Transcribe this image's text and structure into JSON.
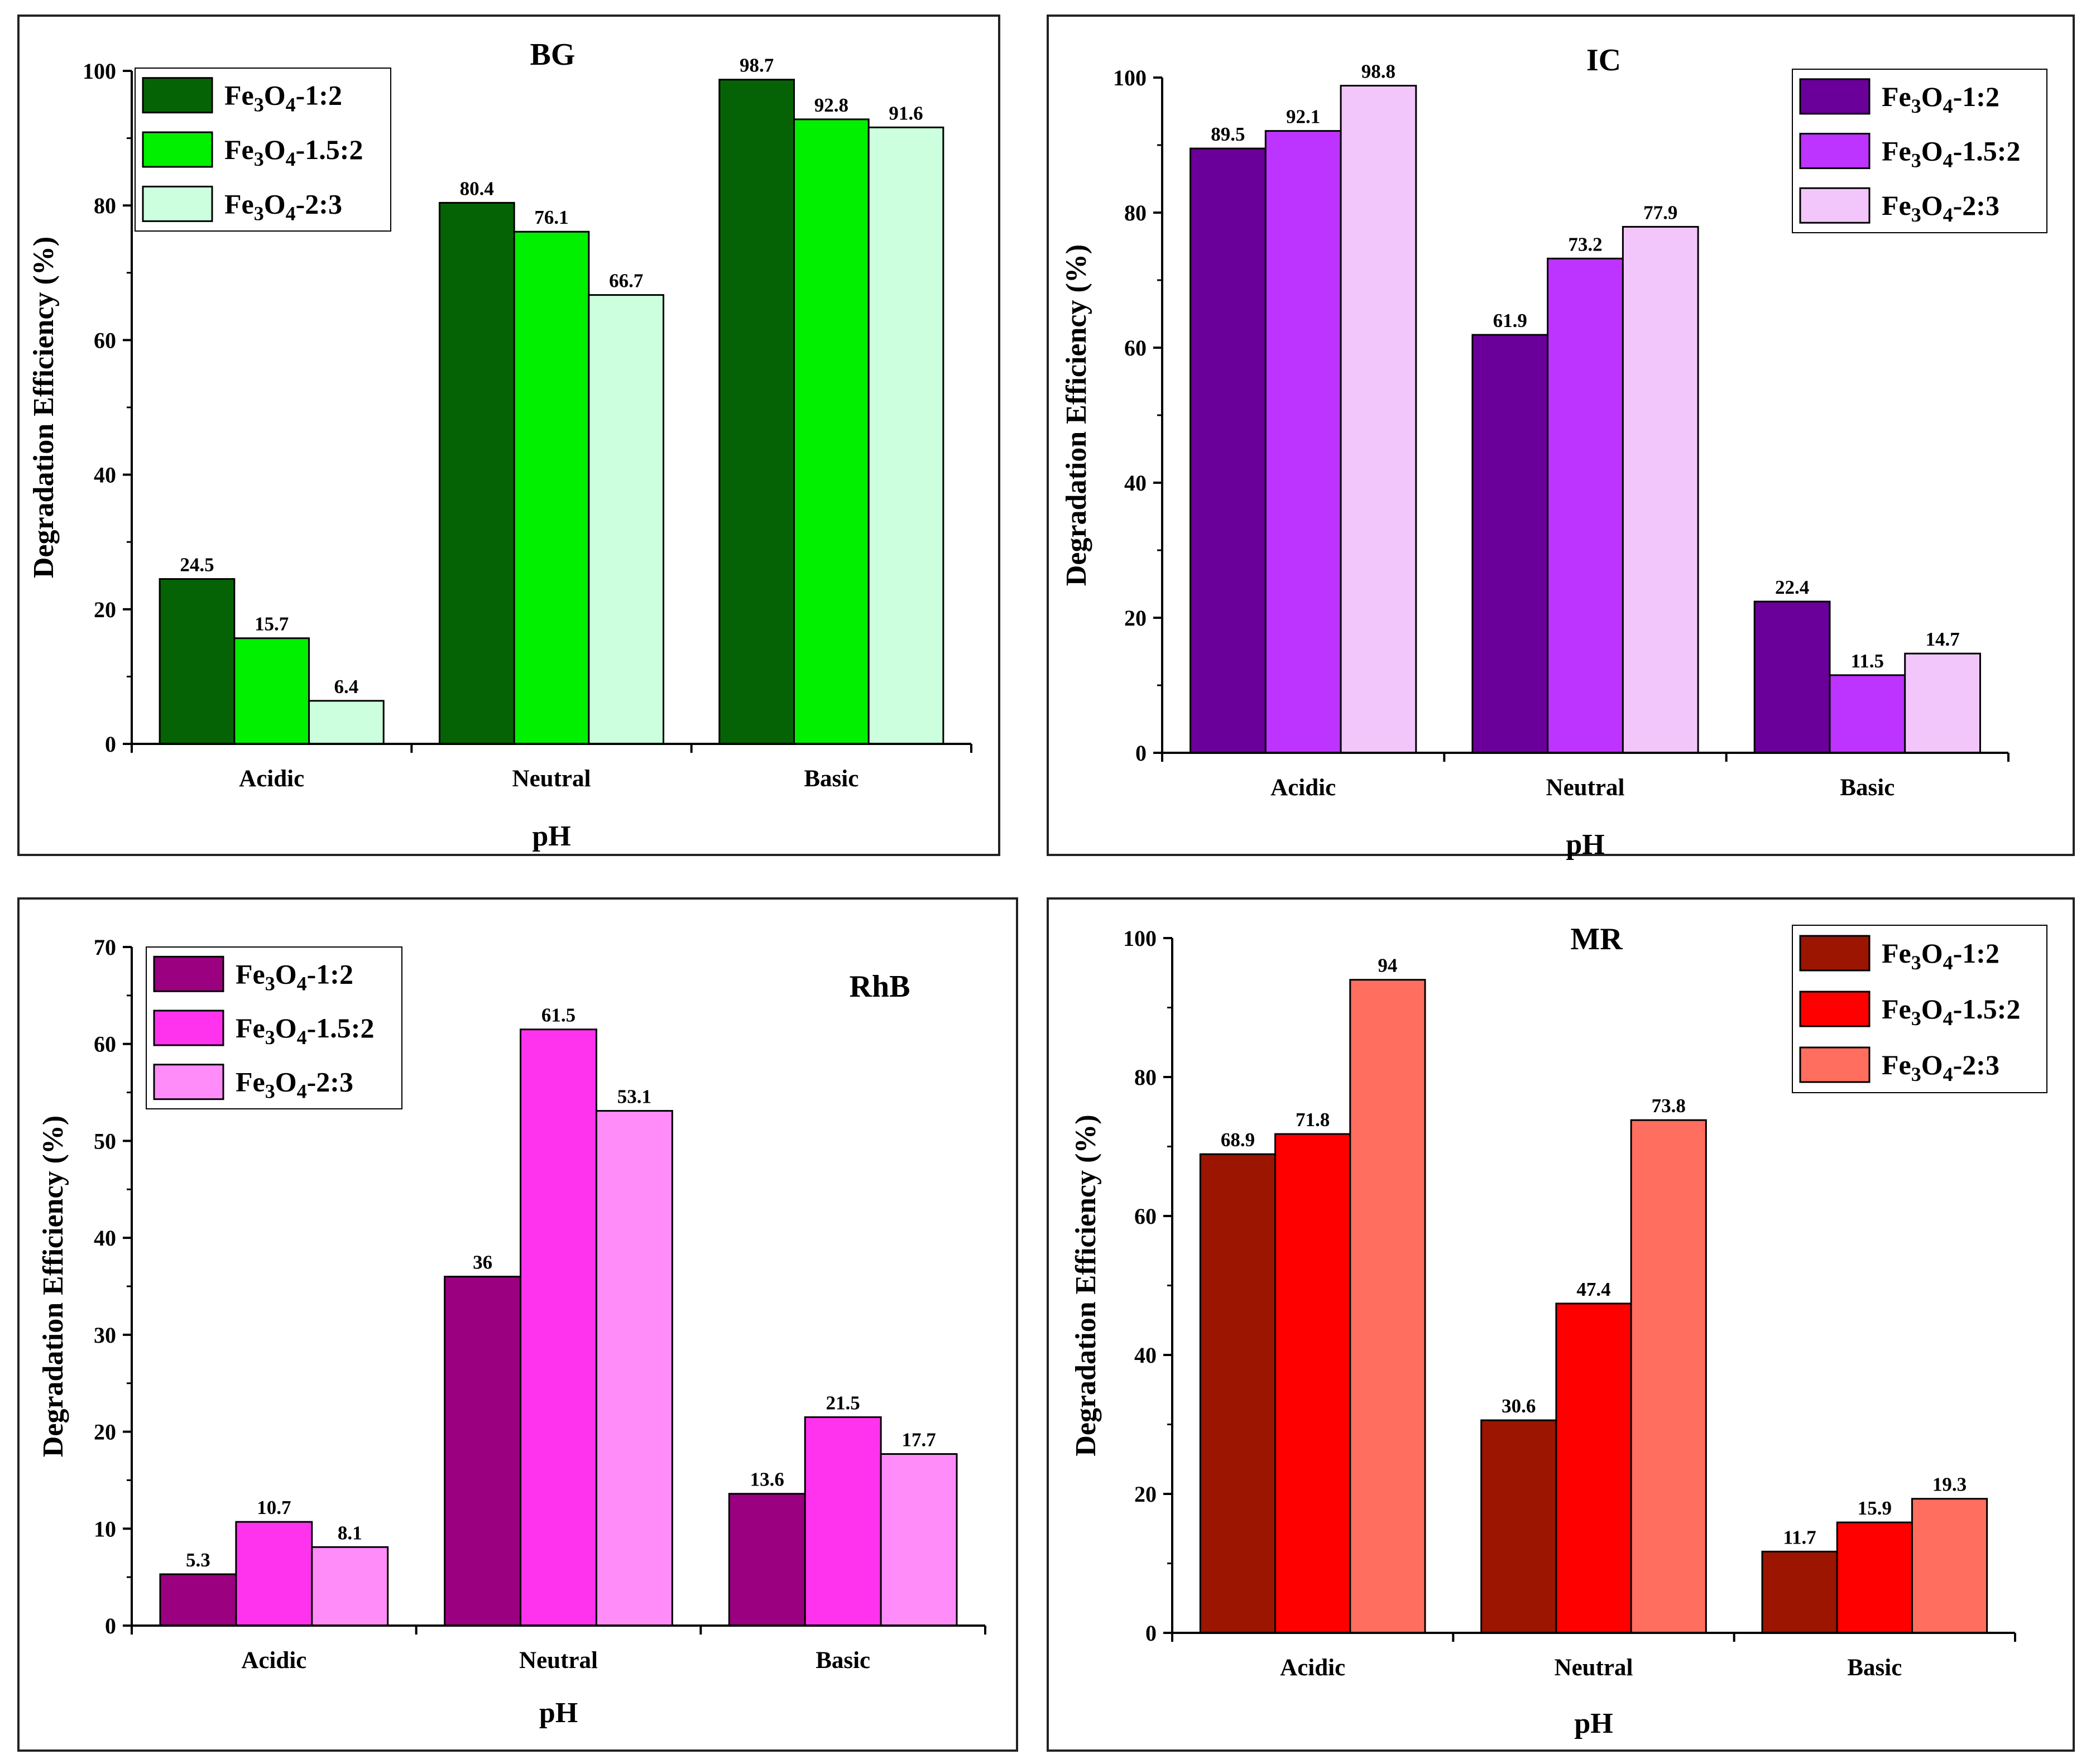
{
  "chart_data": [
    {
      "type": "bar",
      "title": "BG",
      "xlabel": "pH",
      "ylabel": "Degradation Efficiency (%)",
      "ylim": [
        0,
        100
      ],
      "yticks": [
        0,
        20,
        40,
        60,
        80,
        100
      ],
      "categories": [
        "Acidic",
        "Neutral",
        "Basic"
      ],
      "legend_position": "top-left",
      "series": [
        {
          "name": "Fe3O4-1:2",
          "label": {
            "a": "Fe",
            "b": "3",
            "c": "O",
            "d": "4",
            "e": "-1:2"
          },
          "color": "#056305",
          "values": [
            24.5,
            80.4,
            98.7
          ],
          "value_labels": [
            "24.5",
            "80.4",
            "98.7"
          ]
        },
        {
          "name": "Fe3O4-1.5:2",
          "label": {
            "a": "Fe",
            "b": "3",
            "c": "O",
            "d": "4",
            "e": "-1.5:2"
          },
          "color": "#00f000",
          "values": [
            15.7,
            76.1,
            92.8
          ],
          "value_labels": [
            "15.7",
            "76.1",
            "92.8"
          ]
        },
        {
          "name": "Fe3O4-2:3",
          "label": {
            "a": "Fe",
            "b": "3",
            "c": "O",
            "d": "4",
            "e": "-2:3"
          },
          "color": "#ccffdd",
          "values": [
            6.4,
            66.7,
            91.6
          ],
          "value_labels": [
            "6.4",
            "66.7",
            "91.6"
          ]
        }
      ]
    },
    {
      "type": "bar",
      "title": "IC",
      "xlabel": "pH",
      "ylabel": "Degradation Efficiency (%)",
      "ylim": [
        0,
        100
      ],
      "yticks": [
        0,
        20,
        40,
        60,
        80,
        100
      ],
      "categories": [
        "Acidic",
        "Neutral",
        "Basic"
      ],
      "legend_position": "top-right",
      "series": [
        {
          "name": "Fe3O4-1:2",
          "label": {
            "a": "Fe",
            "b": "3",
            "c": "O",
            "d": "4",
            "e": "-1:2"
          },
          "color": "#6a0099",
          "values": [
            89.5,
            61.9,
            22.4
          ],
          "value_labels": [
            "89.5",
            "61.9",
            "22.4"
          ]
        },
        {
          "name": "Fe3O4-1.5:2",
          "label": {
            "a": "Fe",
            "b": "3",
            "c": "O",
            "d": "4",
            "e": "-1.5:2"
          },
          "color": "#bd33ff",
          "values": [
            92.1,
            73.2,
            11.5
          ],
          "value_labels": [
            "92.1",
            "73.2",
            "11.5"
          ]
        },
        {
          "name": "Fe3O4-2:3",
          "label": {
            "a": "Fe",
            "b": "3",
            "c": "O",
            "d": "4",
            "e": "-2:3"
          },
          "color": "#f2c6fb",
          "values": [
            98.8,
            77.9,
            14.7
          ],
          "value_labels": [
            "98.8",
            "77.9",
            "14.7"
          ]
        }
      ]
    },
    {
      "type": "bar",
      "title": "RhB",
      "xlabel": "pH",
      "ylabel": "Degradation Efficiency (%)",
      "ylim": [
        0,
        70
      ],
      "yticks": [
        0,
        10,
        20,
        30,
        40,
        50,
        60,
        70
      ],
      "categories": [
        "Acidic",
        "Neutral",
        "Basic"
      ],
      "legend_position": "top-left",
      "series": [
        {
          "name": "Fe3O4-1:2",
          "label": {
            "a": "Fe",
            "b": "3",
            "c": "O",
            "d": "4",
            "e": "-1:2"
          },
          "color": "#9a0080",
          "values": [
            5.3,
            36,
            13.6
          ],
          "value_labels": [
            "5.3",
            "36",
            "13.6"
          ]
        },
        {
          "name": "Fe3O4-1.5:2",
          "label": {
            "a": "Fe",
            "b": "3",
            "c": "O",
            "d": "4",
            "e": "-1.5:2"
          },
          "color": "#ff33ee",
          "values": [
            10.7,
            61.5,
            21.5
          ],
          "value_labels": [
            "10.7",
            "61.5",
            "21.5"
          ]
        },
        {
          "name": "Fe3O4-2:3",
          "label": {
            "a": "Fe",
            "b": "3",
            "c": "O",
            "d": "4",
            "e": "-2:3"
          },
          "color": "#ff8cf8",
          "values": [
            8.1,
            53.1,
            17.7
          ],
          "value_labels": [
            "8.1",
            "53.1",
            "17.7"
          ]
        }
      ]
    },
    {
      "type": "bar",
      "title": "MR",
      "xlabel": "pH",
      "ylabel": "Degradation Efficiency (%)",
      "ylim": [
        0,
        100
      ],
      "yticks": [
        0,
        20,
        40,
        60,
        80,
        100
      ],
      "categories": [
        "Acidic",
        "Neutral",
        "Basic"
      ],
      "legend_position": "top-right",
      "series": [
        {
          "name": "Fe3O4-1:2",
          "label": {
            "a": "Fe",
            "b": "3",
            "c": "O",
            "d": "4",
            "e": "-1:2"
          },
          "color": "#9b1500",
          "values": [
            68.9,
            30.6,
            11.7
          ],
          "value_labels": [
            "68.9",
            "30.6",
            "11.7"
          ]
        },
        {
          "name": "Fe3O4-1.5:2",
          "label": {
            "a": "Fe",
            "b": "3",
            "c": "O",
            "d": "4",
            "e": "-1.5:2"
          },
          "color": "#ff0000",
          "values": [
            71.8,
            47.4,
            15.9
          ],
          "value_labels": [
            "71.8",
            "47.4",
            "15.9"
          ]
        },
        {
          "name": "Fe3O4-2:3",
          "label": {
            "a": "Fe",
            "b": "3",
            "c": "O",
            "d": "4",
            "e": "-2:3"
          },
          "color": "#ff6e5e",
          "values": [
            94,
            73.8,
            19.3
          ],
          "value_labels": [
            "94",
            "73.8",
            "19.3"
          ]
        }
      ]
    }
  ]
}
